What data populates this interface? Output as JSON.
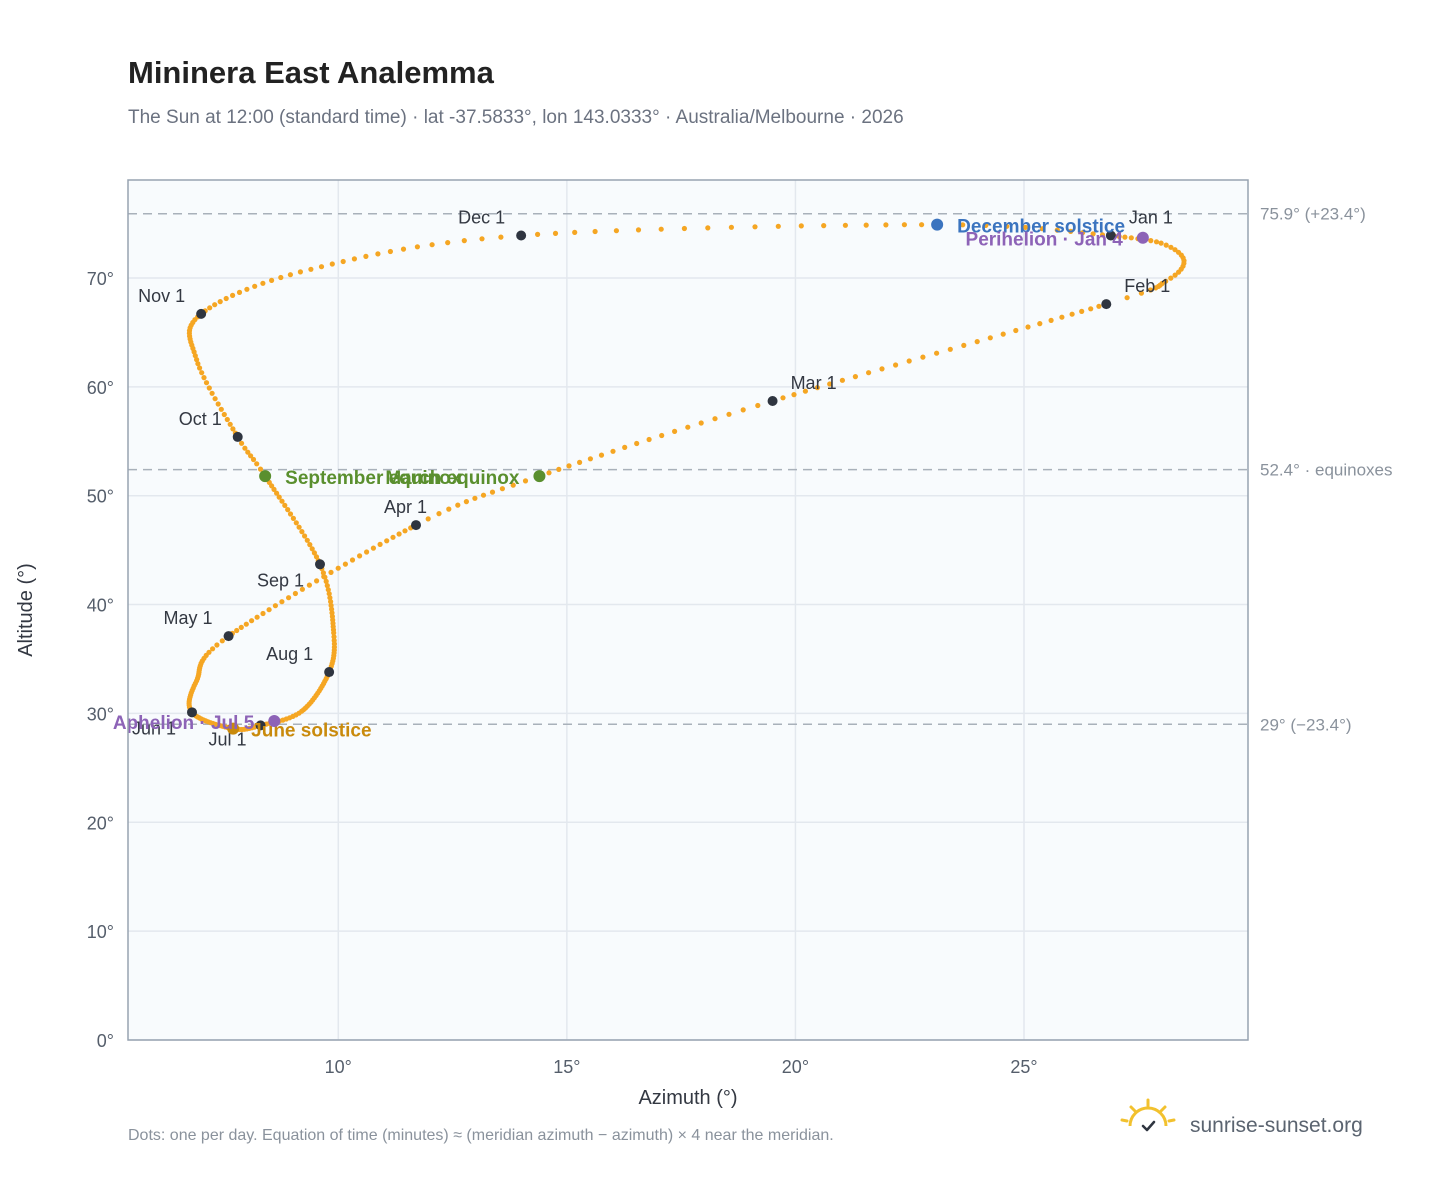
{
  "title": "Mininera East Analemma",
  "subtitle": "The Sun at 12:00 (standard time) · lat -37.5833°, lon 143.0333° · Australia/Melbourne · 2026",
  "footnote": "Dots: one per day. Equation of time (minutes) ≈ (meridian azimuth − azimuth) × 4 near the meridian.",
  "brand": "sunrise-sunset.org",
  "brand_icon": "sun-check-icon",
  "colors": {
    "path": "#f5a623",
    "month_marker": "#2f3540",
    "equinox": "#5a8f2e",
    "june_solstice": "#c98a0c",
    "december_solstice": "#3b74bf",
    "apsis": "#8d63b7",
    "grid": "#e3e8ee",
    "ref_line": "#a9b1ba",
    "plot_bg": "#f8fbfd",
    "frame": "#97a3b1",
    "logo": "#f2c12e"
  },
  "chart_data": {
    "type": "scatter",
    "title": "Mininera East Analemma",
    "xlabel": "Azimuth (°)",
    "ylabel": "Altitude (°)",
    "xlim": [
      5.4,
      29.9
    ],
    "ylim": [
      0,
      79
    ],
    "x_ticks": [
      10,
      15,
      20,
      25
    ],
    "x_tick_labels": [
      "10°",
      "15°",
      "20°",
      "25°"
    ],
    "y_ticks": [
      0,
      10,
      20,
      30,
      40,
      50,
      60,
      70
    ],
    "y_tick_labels": [
      "0°",
      "10°",
      "20°",
      "30°",
      "40°",
      "50°",
      "60°",
      "70°"
    ],
    "grid": true,
    "reference_lines": [
      {
        "y": 75.9,
        "label": "75.9° (+23.4°)"
      },
      {
        "y": 52.4,
        "label": "52.4° · equinoxes"
      },
      {
        "y": 29.0,
        "label": "29° (−23.4°)"
      }
    ],
    "path_keypoints": [
      {
        "doy": 1,
        "az": 26.9,
        "alt": 73.9
      },
      {
        "doy": 10,
        "az": 28.0,
        "alt": 73.2
      },
      {
        "doy": 17,
        "az": 28.5,
        "alt": 71.6
      },
      {
        "doy": 24,
        "az": 28.1,
        "alt": 69.7
      },
      {
        "doy": 32,
        "az": 26.8,
        "alt": 67.6
      },
      {
        "doy": 60,
        "az": 19.5,
        "alt": 58.7
      },
      {
        "doy": 79,
        "az": 14.4,
        "alt": 51.8
      },
      {
        "doy": 91,
        "az": 11.7,
        "alt": 47.3
      },
      {
        "doy": 121,
        "az": 7.6,
        "alt": 37.1
      },
      {
        "doy": 137,
        "az": 6.9,
        "alt": 33.0
      },
      {
        "doy": 152,
        "az": 6.8,
        "alt": 30.1
      },
      {
        "doy": 172,
        "az": 7.7,
        "alt": 28.6
      },
      {
        "doy": 182,
        "az": 8.3,
        "alt": 28.9
      },
      {
        "doy": 195,
        "az": 9.2,
        "alt": 30.2
      },
      {
        "doy": 213,
        "az": 9.8,
        "alt": 33.8
      },
      {
        "doy": 226,
        "az": 9.9,
        "alt": 37.4
      },
      {
        "doy": 244,
        "az": 9.6,
        "alt": 43.7
      },
      {
        "doy": 266,
        "az": 8.4,
        "alt": 51.8
      },
      {
        "doy": 274,
        "az": 7.8,
        "alt": 55.4
      },
      {
        "doy": 290,
        "az": 6.9,
        "alt": 62.5
      },
      {
        "doy": 305,
        "az": 7.0,
        "alt": 66.7
      },
      {
        "doy": 320,
        "az": 9.4,
        "alt": 70.8
      },
      {
        "doy": 335,
        "az": 14.0,
        "alt": 73.9
      },
      {
        "doy": 355,
        "az": 23.1,
        "alt": 74.9
      },
      {
        "doy": 366,
        "az": 26.9,
        "alt": 73.9
      }
    ],
    "month_markers": [
      {
        "label": "Jan 1",
        "az": 26.9,
        "alt": 73.9
      },
      {
        "label": "Feb 1",
        "az": 26.8,
        "alt": 67.6
      },
      {
        "label": "Mar 1",
        "az": 19.5,
        "alt": 58.7
      },
      {
        "label": "Apr 1",
        "az": 11.7,
        "alt": 47.3
      },
      {
        "label": "May 1",
        "az": 7.6,
        "alt": 37.1
      },
      {
        "label": "Jun 1",
        "az": 6.8,
        "alt": 30.1
      },
      {
        "label": "Jul 1",
        "az": 8.3,
        "alt": 28.9
      },
      {
        "label": "Aug 1",
        "az": 9.8,
        "alt": 33.8
      },
      {
        "label": "Sep 1",
        "az": 9.6,
        "alt": 43.7
      },
      {
        "label": "Oct 1",
        "az": 7.8,
        "alt": 55.4
      },
      {
        "label": "Nov 1",
        "az": 7.0,
        "alt": 66.7
      },
      {
        "label": "Dec 1",
        "az": 14.0,
        "alt": 73.9
      }
    ],
    "events": [
      {
        "label": "March equinox",
        "az": 14.4,
        "alt": 51.8,
        "kind": "equinox"
      },
      {
        "label": "September equinox",
        "az": 8.4,
        "alt": 51.8,
        "kind": "equinox"
      },
      {
        "label": "June solstice",
        "az": 7.7,
        "alt": 28.6,
        "kind": "june_solstice"
      },
      {
        "label": "December solstice",
        "az": 23.1,
        "alt": 74.9,
        "kind": "december_solstice"
      },
      {
        "label": "Perihelion · Jan 4",
        "az": 27.6,
        "alt": 73.7,
        "kind": "apsis"
      },
      {
        "label": "Aphelion · Jul 5",
        "az": 8.6,
        "alt": 29.3,
        "kind": "apsis"
      }
    ]
  }
}
